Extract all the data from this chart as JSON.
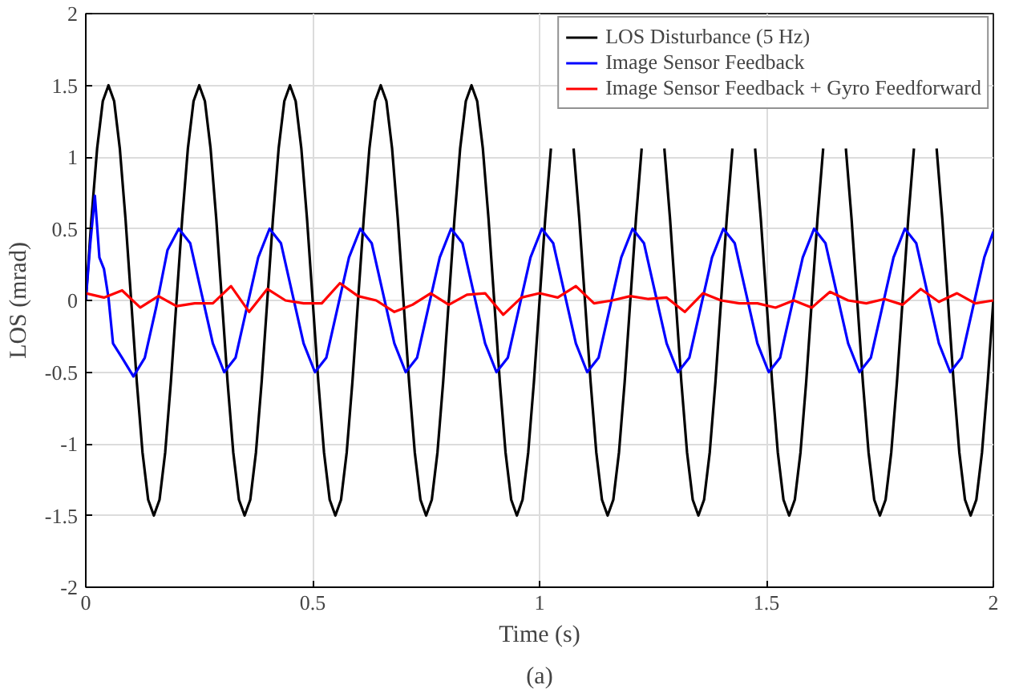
{
  "chart_data": {
    "type": "line",
    "xlabel": "Time (s)",
    "ylabel": "LOS (mrad)",
    "annotations": [
      "(a)"
    ],
    "xlim": [
      0,
      2
    ],
    "xticks": [
      0,
      0.5,
      1,
      1.5,
      2
    ],
    "ylim": [
      -2,
      2
    ],
    "yticks": [
      -2,
      -1.5,
      -1,
      -0.5,
      0,
      0.5,
      1,
      1.5,
      2
    ],
    "grid": true,
    "legend": "top right",
    "line_style": "solid",
    "series": [
      {
        "name": "LOS Disturbance (5 Hz)",
        "color": "#000000",
        "x": [
          0,
          0.0125,
          0.025,
          0.0375,
          0.05,
          0.0625,
          0.075,
          0.0875,
          0.1,
          0.1125,
          0.125,
          0.1375,
          0.15,
          0.1625,
          0.175,
          0.1875,
          0.2,
          0.2125,
          0.225,
          0.2375,
          0.25,
          0.2625,
          0.275,
          0.2875,
          0.3,
          0.3125,
          0.325,
          0.3375,
          0.35,
          0.3625,
          0.375,
          0.3875,
          0.4,
          0.4125,
          0.425,
          0.4375,
          0.45,
          0.4625,
          0.475,
          0.4875,
          0.5,
          0.5125,
          0.525,
          0.5375,
          0.55,
          0.5625,
          0.575,
          0.5875,
          0.6,
          0.6125,
          0.625,
          0.6375,
          0.65,
          0.6625,
          0.675,
          0.6875,
          0.7,
          0.7125,
          0.725,
          0.7375,
          0.75,
          0.7625,
          0.775,
          0.7875,
          0.8,
          0.8125,
          0.825,
          0.8375,
          0.85,
          0.8625,
          0.875,
          0.8875,
          0.9,
          0.9125,
          0.925,
          0.9375,
          0.95,
          0.9625,
          0.975,
          0.9875,
          1.0,
          1.0125,
          1.025,
          1.0375,
          1.05,
          1.0625,
          1.075,
          1.0875,
          1.1,
          1.1125,
          1.125,
          1.1375,
          1.15,
          1.1625,
          1.175,
          1.1875,
          1.2,
          1.2125,
          1.225,
          1.2375,
          1.25,
          1.2625,
          1.275,
          1.2875,
          1.3,
          1.3125,
          1.325,
          1.3375,
          1.35,
          1.3625,
          1.375,
          1.3875,
          1.4,
          1.4125,
          1.425,
          1.4375,
          1.45,
          1.4625,
          1.475,
          1.4875,
          1.5,
          1.5125,
          1.525,
          1.5375,
          1.55,
          1.5625,
          1.575,
          1.5875,
          1.6,
          1.6125,
          1.625,
          1.6375,
          1.65,
          1.6625,
          1.675,
          1.6875,
          1.7,
          1.7125,
          1.725,
          1.7375,
          1.75,
          1.7625,
          1.775,
          1.7875,
          1.8,
          1.8125,
          1.825,
          1.8375,
          1.85,
          1.8625,
          1.875,
          1.8875,
          1.9,
          1.9125,
          1.925,
          1.9375,
          1.95,
          1.9625,
          1.975,
          1.9875,
          2.0
        ],
        "values": [
          0,
          0.57,
          1.06,
          1.39,
          1.5,
          1.39,
          1.06,
          0.57,
          0,
          -0.57,
          -1.06,
          -1.39,
          -1.5,
          -1.39,
          -1.06,
          -0.57,
          0,
          0.57,
          1.06,
          1.39,
          1.5,
          1.39,
          1.06,
          0.57,
          0,
          -0.57,
          -1.06,
          -1.39,
          -1.5,
          -1.39,
          -1.06,
          -0.57,
          0,
          0.57,
          1.06,
          1.39,
          1.5,
          1.39,
          1.06,
          0.57,
          0,
          -0.57,
          -1.06,
          -1.39,
          -1.5,
          -1.39,
          -1.06,
          -0.57,
          0,
          0.57,
          1.06,
          1.39,
          1.5,
          1.39,
          1.06,
          0.57,
          0,
          -0.57,
          -1.06,
          -1.39,
          -1.5,
          -1.39,
          -1.06,
          -0.57,
          0,
          0.57,
          1.06,
          1.39,
          1.5,
          1.39,
          1.06,
          0.57,
          0,
          -0.57,
          -1.06,
          -1.39,
          -1.5,
          -1.39,
          -1.06,
          -0.57,
          0,
          0.57,
          1.06,
          null,
          null,
          null,
          1.06,
          0.57,
          0,
          -0.57,
          -1.06,
          -1.39,
          -1.5,
          -1.39,
          -1.06,
          -0.57,
          0,
          0.57,
          1.06,
          null,
          null,
          null,
          1.06,
          0.57,
          0,
          -0.57,
          -1.06,
          -1.39,
          -1.5,
          -1.39,
          -1.06,
          -0.57,
          0,
          0.57,
          1.06,
          null,
          null,
          null,
          1.06,
          0.57,
          0,
          -0.57,
          -1.06,
          -1.39,
          -1.5,
          -1.39,
          -1.06,
          -0.57,
          0,
          0.57,
          1.06,
          null,
          null,
          null,
          1.06,
          0.57,
          0,
          -0.57,
          -1.06,
          -1.39,
          -1.5,
          -1.39,
          -1.06,
          -0.57,
          0,
          0.57,
          1.06,
          null,
          null,
          null,
          1.06,
          0.57,
          0,
          -0.57,
          -1.06,
          -1.39,
          -1.5,
          -1.39,
          -1.06,
          -0.57,
          0
        ]
      },
      {
        "name": "Image Sensor Feedback",
        "color": "#0000ff",
        "x": [
          0,
          0.01,
          0.02,
          0.03,
          0.04,
          0.05,
          0.06,
          0.08,
          0.105,
          0.13,
          0.155,
          0.18,
          0.205,
          0.23,
          0.255,
          0.28,
          0.305,
          0.33,
          0.355,
          0.38,
          0.405,
          0.43,
          0.455,
          0.48,
          0.505,
          0.53,
          0.555,
          0.58,
          0.605,
          0.63,
          0.655,
          0.68,
          0.705,
          0.73,
          0.755,
          0.78,
          0.805,
          0.83,
          0.855,
          0.88,
          0.905,
          0.93,
          0.955,
          0.98,
          1.005,
          1.03,
          1.055,
          1.08,
          1.105,
          1.13,
          1.155,
          1.18,
          1.205,
          1.23,
          1.255,
          1.28,
          1.305,
          1.33,
          1.355,
          1.38,
          1.405,
          1.43,
          1.455,
          1.48,
          1.505,
          1.53,
          1.555,
          1.58,
          1.605,
          1.63,
          1.655,
          1.68,
          1.705,
          1.73,
          1.755,
          1.78,
          1.805,
          1.83,
          1.855,
          1.88,
          1.905,
          1.93,
          1.955,
          1.98,
          2.0
        ],
        "values": [
          0,
          0.4,
          0.73,
          0.3,
          0.22,
          0.02,
          -0.3,
          -0.4,
          -0.53,
          -0.4,
          -0.05,
          0.35,
          0.5,
          0.4,
          0.05,
          -0.3,
          -0.5,
          -0.4,
          -0.05,
          0.3,
          0.5,
          0.4,
          0.05,
          -0.3,
          -0.5,
          -0.4,
          -0.05,
          0.3,
          0.5,
          0.4,
          0.05,
          -0.3,
          -0.5,
          -0.4,
          -0.05,
          0.3,
          0.5,
          0.4,
          0.05,
          -0.3,
          -0.5,
          -0.4,
          -0.05,
          0.3,
          0.5,
          0.4,
          0.05,
          -0.3,
          -0.5,
          -0.4,
          -0.05,
          0.3,
          0.5,
          0.4,
          0.05,
          -0.3,
          -0.5,
          -0.4,
          -0.05,
          0.3,
          0.5,
          0.4,
          0.05,
          -0.3,
          -0.5,
          -0.4,
          -0.05,
          0.3,
          0.5,
          0.4,
          0.05,
          -0.3,
          -0.5,
          -0.4,
          -0.05,
          0.3,
          0.5,
          0.4,
          0.05,
          -0.3,
          -0.5,
          -0.4,
          -0.05,
          0.3,
          0.48
        ]
      },
      {
        "name": "Image Sensor Feedback + Gyro Feedforward",
        "color": "#ff0000",
        "x": [
          0,
          0.04,
          0.08,
          0.12,
          0.16,
          0.2,
          0.24,
          0.28,
          0.32,
          0.36,
          0.4,
          0.44,
          0.48,
          0.52,
          0.56,
          0.6,
          0.64,
          0.68,
          0.72,
          0.76,
          0.8,
          0.84,
          0.88,
          0.92,
          0.96,
          1.0,
          1.04,
          1.08,
          1.12,
          1.16,
          1.2,
          1.24,
          1.28,
          1.32,
          1.36,
          1.4,
          1.44,
          1.48,
          1.52,
          1.56,
          1.6,
          1.64,
          1.68,
          1.72,
          1.76,
          1.8,
          1.84,
          1.88,
          1.92,
          1.96,
          2.0
        ],
        "values": [
          0.05,
          0.02,
          0.07,
          -0.05,
          0.03,
          -0.04,
          -0.02,
          -0.02,
          0.1,
          -0.08,
          0.08,
          0,
          -0.02,
          -0.02,
          0.12,
          0.03,
          0,
          -0.08,
          -0.03,
          0.05,
          -0.03,
          0.04,
          0.05,
          -0.1,
          0.02,
          0.05,
          0.02,
          0.1,
          -0.02,
          0,
          0.03,
          0.01,
          0.02,
          -0.08,
          0.05,
          0,
          -0.02,
          -0.02,
          -0.05,
          0,
          -0.05,
          0.06,
          0,
          -0.02,
          0.01,
          -0.03,
          0.08,
          -0.01,
          0.05,
          -0.02,
          0.0
        ]
      }
    ]
  }
}
